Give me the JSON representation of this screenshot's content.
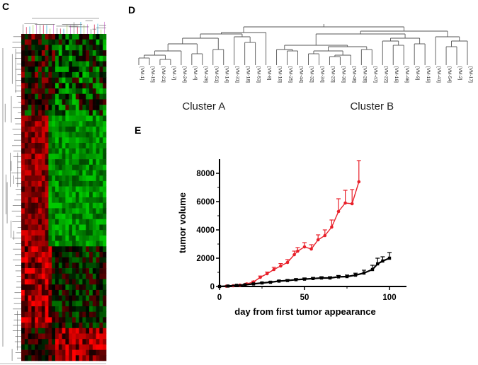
{
  "panels": {
    "c": {
      "letter": "C"
    },
    "d": {
      "letter": "D"
    },
    "e": {
      "letter": "E"
    }
  },
  "chart_data": [
    {
      "type": "heatmap",
      "panel": "C",
      "palette": {
        "high": "#ff0000",
        "mid": "#000000",
        "low": "#00c800"
      },
      "rows": 60,
      "columns": 25,
      "blocks": [
        {
          "rows": "upper 25%",
          "left_columns": "mixed",
          "right_columns": "mixed, mostly green"
        },
        {
          "rows": "middle 40%",
          "left_columns": "red",
          "right_columns": "green"
        },
        {
          "rows": "lower 35%",
          "left_columns": "red",
          "right_columns": "dark/mixed with red at bottom"
        }
      ]
    },
    {
      "type": "dendrogram",
      "panel": "D",
      "leaves": [
        "[VM-1]",
        "[VM-15]",
        "[VM-21]",
        "[VM-7]",
        "[VM-24]",
        "[VM-4]",
        "[VM-26]",
        "[VM-51]",
        "[VM-14]",
        "[VM-31]",
        "[VM-18]",
        "[VM-53]",
        "[VM-8]",
        "[VM-10]",
        "[VM-25]",
        "[VM-44]",
        "[VM-32]",
        "[VM-34]",
        "[VM-23]",
        "[VM-30]",
        "[VM-48]",
        "[VM-28]",
        "[VM-47]",
        "[VM-22]",
        "[VM-16]",
        "[VM-46]",
        "[VM-9]",
        "[VM-19]",
        "[VM-41]",
        "[VM-54]",
        "[VM-2]",
        "[VM-17]"
      ],
      "clusters": [
        {
          "label": "Cluster A",
          "first_leaf": 0,
          "last_leaf": 12
        },
        {
          "label": "Cluster B",
          "first_leaf": 13,
          "last_leaf": 31
        }
      ]
    },
    {
      "type": "line",
      "panel": "E",
      "xlabel": "day from first tumor appearance",
      "ylabel": "tumor volume",
      "xlim": [
        0,
        110
      ],
      "ylim": [
        0,
        9000
      ],
      "xticks": [
        0,
        50,
        100
      ],
      "yticks": [
        0,
        2000,
        4000,
        6000,
        8000
      ],
      "grid": false,
      "series": [
        {
          "color": "#e8202a",
          "marker": "circle",
          "x": [
            0,
            4,
            8,
            12,
            16,
            20,
            24,
            28,
            32,
            36,
            40,
            44,
            46,
            50,
            54,
            58,
            62,
            66,
            70,
            74,
            78,
            82
          ],
          "y": [
            0,
            20,
            50,
            100,
            180,
            320,
            650,
            900,
            1200,
            1450,
            1700,
            2250,
            2500,
            2800,
            2650,
            3300,
            3600,
            4200,
            5300,
            5900,
            5850,
            7400
          ],
          "err": [
            0,
            10,
            20,
            30,
            50,
            60,
            90,
            120,
            150,
            170,
            200,
            250,
            250,
            300,
            300,
            350,
            400,
            500,
            900,
            900,
            1000,
            1500
          ]
        },
        {
          "color": "#000000",
          "marker": "square",
          "x": [
            0,
            5,
            10,
            15,
            20,
            25,
            30,
            35,
            40,
            45,
            50,
            55,
            60,
            65,
            70,
            75,
            80,
            85,
            90,
            93,
            96,
            100
          ],
          "y": [
            0,
            30,
            80,
            120,
            180,
            250,
            300,
            380,
            420,
            480,
            520,
            560,
            600,
            600,
            680,
            700,
            800,
            950,
            1200,
            1600,
            1800,
            2000
          ],
          "err": [
            0,
            20,
            30,
            40,
            50,
            50,
            60,
            60,
            70,
            70,
            80,
            80,
            90,
            90,
            100,
            110,
            140,
            200,
            300,
            400,
            300,
            400
          ]
        }
      ]
    }
  ]
}
